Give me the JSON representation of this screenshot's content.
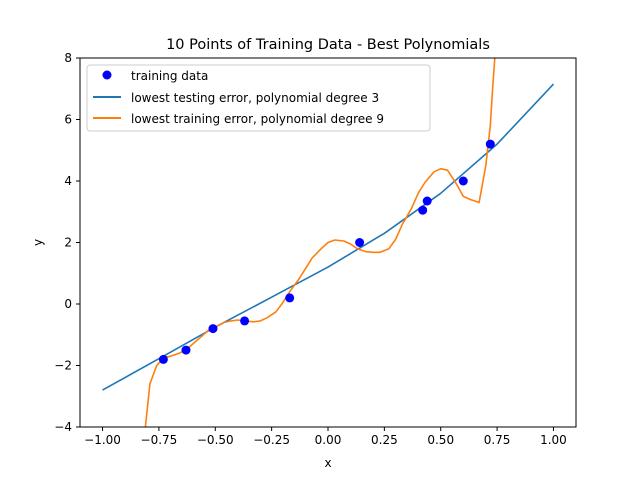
{
  "chart_data": {
    "type": "line",
    "title": "10 Points of Training Data - Best Polynomials",
    "xlabel": "x",
    "ylabel": "y",
    "xlim": [
      -1.1,
      1.1
    ],
    "ylim": [
      -4,
      8
    ],
    "x_ticks": [
      -1.0,
      -0.75,
      -0.5,
      -0.25,
      0.0,
      0.25,
      0.5,
      0.75,
      1.0
    ],
    "x_tick_labels": [
      "−1.00",
      "−0.75",
      "−0.50",
      "−0.25",
      "0.00",
      "0.25",
      "0.50",
      "0.75",
      "1.00"
    ],
    "y_ticks": [
      -4,
      -2,
      0,
      2,
      4,
      6,
      8
    ],
    "y_tick_labels": [
      "−4",
      "−2",
      "0",
      "2",
      "4",
      "6",
      "8"
    ],
    "grid": false,
    "legend_position": "top-left",
    "series": [
      {
        "name": "training data",
        "kind": "scatter",
        "color": "#0000ff",
        "x": [
          -0.73,
          -0.63,
          -0.51,
          -0.37,
          -0.17,
          0.14,
          0.42,
          0.44,
          0.6,
          0.72
        ],
        "y": [
          -1.8,
          -1.5,
          -0.8,
          -0.55,
          0.2,
          2.0,
          3.05,
          3.35,
          4.0,
          5.2
        ]
      },
      {
        "name": "lowest testing error, polynomial degree 3",
        "kind": "line",
        "color": "#1f77b4",
        "x": [
          -1.0,
          -0.75,
          -0.5,
          -0.25,
          0.0,
          0.25,
          0.5,
          0.75,
          1.0
        ],
        "y": [
          -2.8,
          -1.78,
          -0.75,
          0.22,
          1.2,
          2.3,
          3.6,
          5.2,
          7.15
        ]
      },
      {
        "name": "lowest training error, polynomial degree 9",
        "kind": "line",
        "color": "#ff7f0e",
        "x": [
          -0.81,
          -0.79,
          -0.76,
          -0.73,
          -0.7,
          -0.66,
          -0.63,
          -0.6,
          -0.56,
          -0.53,
          -0.5,
          -0.46,
          -0.43,
          -0.4,
          -0.37,
          -0.33,
          -0.3,
          -0.27,
          -0.23,
          -0.2,
          -0.17,
          -0.13,
          -0.1,
          -0.07,
          -0.03,
          0.0,
          0.03,
          0.07,
          0.1,
          0.13,
          0.17,
          0.2,
          0.23,
          0.27,
          0.3,
          0.33,
          0.37,
          0.4,
          0.43,
          0.47,
          0.5,
          0.53,
          0.57,
          0.6,
          0.63,
          0.67,
          0.7,
          0.72,
          0.73,
          0.74
        ],
        "y": [
          -4.0,
          -2.6,
          -2.0,
          -1.75,
          -1.7,
          -1.6,
          -1.5,
          -1.3,
          -1.05,
          -0.85,
          -0.75,
          -0.6,
          -0.55,
          -0.52,
          -0.55,
          -0.58,
          -0.55,
          -0.45,
          -0.25,
          0.05,
          0.4,
          0.8,
          1.15,
          1.5,
          1.8,
          2.0,
          2.08,
          2.05,
          1.95,
          1.8,
          1.7,
          1.68,
          1.68,
          1.8,
          2.1,
          2.6,
          3.1,
          3.6,
          3.95,
          4.3,
          4.4,
          4.35,
          3.9,
          3.5,
          3.4,
          3.3,
          4.5,
          5.8,
          7.0,
          8.0
        ]
      }
    ]
  }
}
